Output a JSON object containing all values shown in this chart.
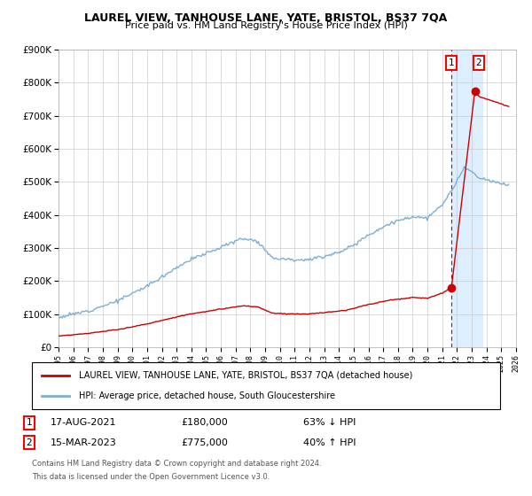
{
  "title": "LAUREL VIEW, TANHOUSE LANE, YATE, BRISTOL, BS37 7QA",
  "subtitle": "Price paid vs. HM Land Registry's House Price Index (HPI)",
  "legend_line1": "LAUREL VIEW, TANHOUSE LANE, YATE, BRISTOL, BS37 7QA (detached house)",
  "legend_line2": "HPI: Average price, detached house, South Gloucestershire",
  "transaction1_date": "17-AUG-2021",
  "transaction1_price": "£180,000",
  "transaction1_hpi": "63% ↓ HPI",
  "transaction2_date": "15-MAR-2023",
  "transaction2_price": "£775,000",
  "transaction2_hpi": "40% ↑ HPI",
  "footer": "Contains HM Land Registry data © Crown copyright and database right 2024.\nThis data is licensed under the Open Government Licence v3.0.",
  "hpi_color": "#7bafd4",
  "price_color": "#cc0000",
  "dot_color": "#cc0000",
  "highlight_color": "#ddeeff",
  "year_start": 1995,
  "year_end": 2026,
  "ylim_max": 900000,
  "transaction1_year": 2021.625,
  "transaction2_year": 2023.21,
  "t1_price": 180000,
  "t2_price": 775000
}
